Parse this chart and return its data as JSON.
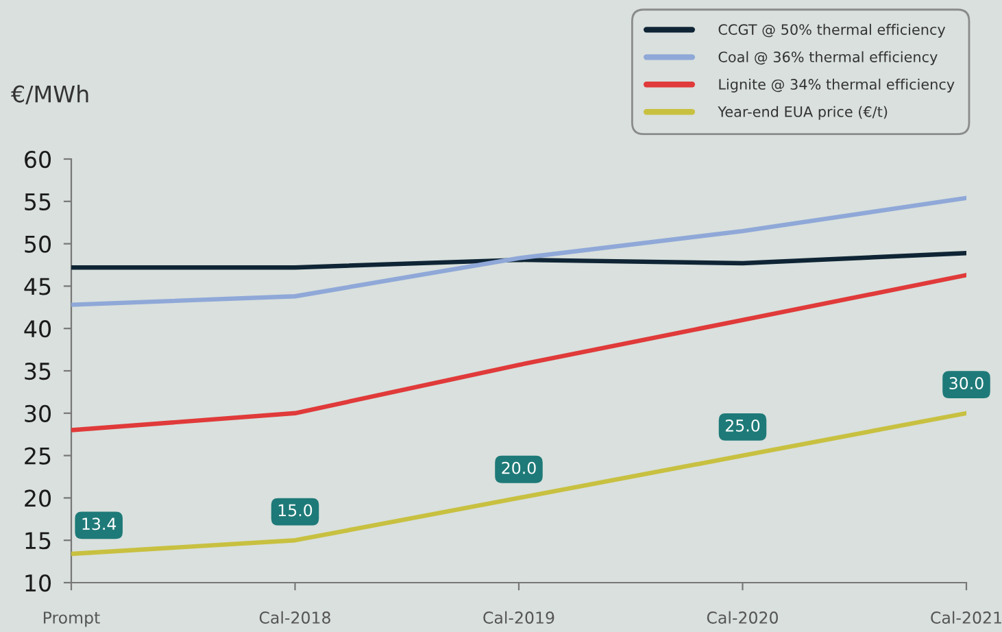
{
  "chart_data": {
    "type": "line",
    "ylabel": "€/MWh",
    "categories": [
      "Prompt",
      "Cal-2018",
      "Cal-2019",
      "Cal-2020",
      "Cal-2021"
    ],
    "series": [
      {
        "name": "CCGT @ 50% thermal efficiency",
        "color": "#0f2535",
        "values": [
          47.2,
          47.2,
          48.1,
          47.7,
          48.9
        ]
      },
      {
        "name": "Coal @ 36% thermal efficiency",
        "color": "#8fa8d8",
        "values": [
          42.8,
          43.8,
          48.3,
          51.5,
          55.4
        ]
      },
      {
        "name": "Lignite @ 34% thermal efficiency",
        "color": "#e03a3a",
        "values": [
          28.0,
          30.0,
          35.7,
          41.0,
          46.3
        ]
      },
      {
        "name": "Year-end EUA price (€/t)",
        "color": "#c8c040",
        "values": [
          13.4,
          15.0,
          20.0,
          25.0,
          30.0
        ],
        "value_labels": [
          "13.4",
          "15.0",
          "20.0",
          "25.0",
          "30.0"
        ]
      }
    ],
    "ylim": [
      10,
      60
    ],
    "yticks": [
      10,
      15,
      20,
      25,
      30,
      35,
      40,
      45,
      50,
      55,
      60
    ],
    "legend": "top right"
  }
}
